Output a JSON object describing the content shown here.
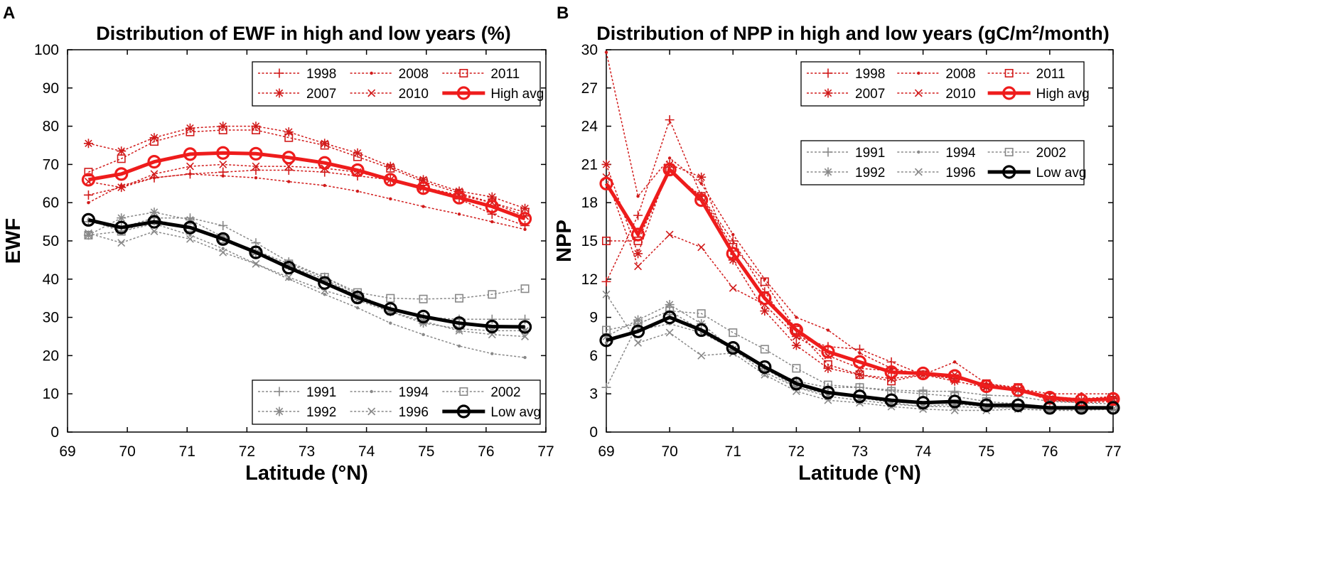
{
  "chart_data": [
    {
      "panel_label": "A",
      "type": "line",
      "title": "Distribution of EWF in high and low years (%)",
      "xlabel": "Latitude (°N)",
      "ylabel": "EWF",
      "xlim": [
        69,
        77
      ],
      "ylim": [
        0,
        100
      ],
      "xticks": [
        69,
        70,
        71,
        72,
        73,
        74,
        75,
        76,
        77
      ],
      "yticks": [
        0,
        10,
        20,
        30,
        40,
        50,
        60,
        70,
        80,
        90,
        100
      ],
      "x": [
        69.35,
        69.9,
        70.45,
        71.05,
        71.6,
        72.15,
        72.7,
        73.3,
        73.85,
        74.4,
        74.95,
        75.55,
        76.1,
        76.65
      ],
      "legend_high_position": "top-right",
      "legend_low_position": "bottom-right",
      "colors": {
        "high": "#d11a1a",
        "high_avg": "#ee1c1c",
        "low": "#888888",
        "low_avg": "#000000"
      },
      "series": [
        {
          "name": "1998",
          "group": "high",
          "marker": "plus",
          "values": [
            62,
            64,
            66.5,
            67.5,
            68,
            68.5,
            68.5,
            68,
            67,
            66,
            63.5,
            61,
            57,
            54
          ]
        },
        {
          "name": "2008",
          "group": "high",
          "marker": "dot",
          "values": [
            60,
            64.5,
            66.5,
            67.5,
            67,
            66.5,
            65.5,
            64.5,
            63,
            61,
            59,
            57,
            55,
            53
          ]
        },
        {
          "name": "2011",
          "group": "high",
          "marker": "square",
          "values": [
            68,
            71.5,
            76,
            78.5,
            79,
            79,
            77,
            75,
            72,
            69,
            65.5,
            62.5,
            60,
            57.5
          ]
        },
        {
          "name": "2007",
          "group": "high",
          "marker": "star",
          "values": [
            75.5,
            73.5,
            77,
            79.5,
            80,
            80,
            78.5,
            75.5,
            73,
            69.5,
            66,
            63,
            61.5,
            58.5
          ]
        },
        {
          "name": "2010",
          "group": "high",
          "marker": "x",
          "values": [
            65.5,
            64,
            67.5,
            69.5,
            70,
            69.5,
            69.5,
            69,
            68,
            66,
            64,
            62,
            60,
            56.5
          ]
        },
        {
          "name": "High avg",
          "group": "high",
          "marker": "circle",
          "avg": true,
          "values": [
            66,
            67.5,
            70.7,
            72.7,
            73,
            72.8,
            71.8,
            70.4,
            68.5,
            66,
            63.8,
            61.3,
            59,
            55.8
          ]
        },
        {
          "name": "1991",
          "group": "low",
          "marker": "plus",
          "values": [
            55,
            53.5,
            56,
            56,
            54,
            49.5,
            44.5,
            40.5,
            36,
            32,
            30,
            29.5,
            29.5,
            29.5
          ]
        },
        {
          "name": "1994",
          "group": "low",
          "marker": "dot",
          "values": [
            55.5,
            52.5,
            54.5,
            51.5,
            48,
            44,
            40,
            36,
            32.5,
            28.5,
            25.5,
            22.5,
            20.5,
            19.5
          ]
        },
        {
          "name": "2002",
          "group": "low",
          "marker": "square",
          "values": [
            51.5,
            52.5,
            55.5,
            53.5,
            50.5,
            47.5,
            44,
            40.5,
            36.5,
            35,
            34.8,
            35,
            36,
            37.5
          ]
        },
        {
          "name": "1992",
          "group": "low",
          "marker": "star",
          "values": [
            51.5,
            56,
            57.5,
            55.5,
            51,
            47,
            43.5,
            40,
            35.5,
            31.5,
            28.5,
            27,
            26.5,
            26.5
          ]
        },
        {
          "name": "1996",
          "group": "low",
          "marker": "x",
          "values": [
            52,
            49.5,
            52.5,
            50.5,
            47,
            44,
            40.5,
            37,
            34.5,
            31.5,
            29,
            26.5,
            25.5,
            25
          ]
        },
        {
          "name": "Low avg",
          "group": "low",
          "marker": "circle",
          "avg": true,
          "values": [
            55.5,
            53.5,
            55,
            53.5,
            50.5,
            47,
            43,
            39,
            35.2,
            32.2,
            30.2,
            28.5,
            27.6,
            27.5
          ]
        }
      ]
    },
    {
      "panel_label": "B",
      "type": "line",
      "title": "Distribution of NPP in high and low years (gC/m",
      "title_superscript": "2",
      "title_suffix": "/month)",
      "xlabel": "Latitude (°N)",
      "ylabel": "NPP",
      "xlim": [
        69,
        77
      ],
      "ylim": [
        0,
        30
      ],
      "xticks": [
        69,
        70,
        71,
        72,
        73,
        74,
        75,
        76,
        77
      ],
      "yticks": [
        0,
        3,
        6,
        9,
        12,
        15,
        18,
        21,
        24,
        27,
        30
      ],
      "x": [
        69,
        69.5,
        70,
        70.5,
        71,
        71.5,
        72,
        72.5,
        73,
        73.5,
        74,
        74.5,
        75,
        75.5,
        76,
        76.5,
        77
      ],
      "legend_high_position": "top-right",
      "legend_low_position": "upper-right",
      "colors": {
        "high": "#d11a1a",
        "high_avg": "#ee1c1c",
        "low": "#888888",
        "low_avg": "#000000"
      },
      "series": [
        {
          "name": "1998",
          "group": "high",
          "marker": "plus",
          "values": [
            11.8,
            17,
            24.5,
            18.5,
            15,
            11,
            7.5,
            6.7,
            6.5,
            5.5,
            4.5,
            4.2,
            3.7,
            3.3,
            2.8,
            2.6,
            2.8
          ]
        },
        {
          "name": "2008",
          "group": "high",
          "marker": "dot",
          "values": [
            29.8,
            18.5,
            21.5,
            19.5,
            15.5,
            12,
            9,
            8,
            6.2,
            5,
            4.5,
            5.5,
            3.8,
            3.4,
            3,
            3,
            3
          ]
        },
        {
          "name": "2011",
          "group": "high",
          "marker": "square",
          "values": [
            15,
            15,
            20.5,
            18.5,
            14.5,
            11.8,
            8,
            5.3,
            4.5,
            4,
            4.5,
            4.2,
            3.8,
            3.5,
            2.5,
            2.3,
            2.4
          ]
        },
        {
          "name": "2007",
          "group": "high",
          "marker": "star",
          "values": [
            21,
            14,
            21,
            20,
            13.5,
            9.5,
            6.8,
            5,
            4.5,
            4.2,
            4.5,
            4,
            3.5,
            3.3,
            2.5,
            2.4,
            2.6
          ]
        },
        {
          "name": "2010",
          "group": "high",
          "marker": "x",
          "values": [
            20,
            13,
            15.5,
            14.5,
            11.3,
            10,
            7.5,
            6,
            5,
            4.8,
            4.5,
            4.5,
            3.6,
            3.3,
            2.6,
            2.5,
            2.6
          ]
        },
        {
          "name": "High avg",
          "group": "high",
          "marker": "circle",
          "avg": true,
          "values": [
            19.5,
            15.5,
            20.6,
            18.2,
            14,
            10.5,
            8,
            6.3,
            5.5,
            4.7,
            4.6,
            4.4,
            3.6,
            3.3,
            2.7,
            2.5,
            2.6
          ]
        },
        {
          "name": "1991",
          "group": "low",
          "marker": "plus",
          "values": [
            3.5,
            8.5,
            9.5,
            8,
            6.5,
            5,
            4,
            3.5,
            3.5,
            3.3,
            3.2,
            3.2,
            2.9,
            2.8,
            2.4,
            2.3,
            2.2
          ]
        },
        {
          "name": "1994",
          "group": "low",
          "marker": "dot",
          "values": [
            7,
            8,
            8.5,
            7.8,
            6.5,
            5,
            3.5,
            3,
            2.7,
            2.3,
            2,
            2.2,
            2,
            1.9,
            1.8,
            1.8,
            1.8
          ]
        },
        {
          "name": "2002",
          "group": "low",
          "marker": "square",
          "values": [
            8,
            8.5,
            9.5,
            9.3,
            7.8,
            6.5,
            5,
            3.7,
            3.5,
            3.2,
            3,
            2.8,
            2.4,
            2.2,
            2,
            2,
            2
          ]
        },
        {
          "name": "1992",
          "group": "low",
          "marker": "star",
          "values": [
            7.5,
            8.8,
            10,
            8.5,
            6.5,
            4.7,
            3.5,
            2.8,
            2.5,
            2.2,
            2,
            2,
            1.9,
            1.9,
            1.8,
            1.8,
            1.8
          ]
        },
        {
          "name": "1996",
          "group": "low",
          "marker": "x",
          "values": [
            10.8,
            7,
            7.8,
            6,
            6.2,
            4.5,
            3.2,
            2.5,
            2.3,
            2,
            1.8,
            1.7,
            1.7,
            1.8,
            1.7,
            1.7,
            1.8
          ]
        },
        {
          "name": "Low avg",
          "group": "low",
          "marker": "circle",
          "avg": true,
          "values": [
            7.2,
            7.9,
            9,
            8,
            6.6,
            5.1,
            3.8,
            3.1,
            2.8,
            2.5,
            2.3,
            2.4,
            2.1,
            2.1,
            1.9,
            1.9,
            1.9
          ]
        }
      ]
    }
  ]
}
